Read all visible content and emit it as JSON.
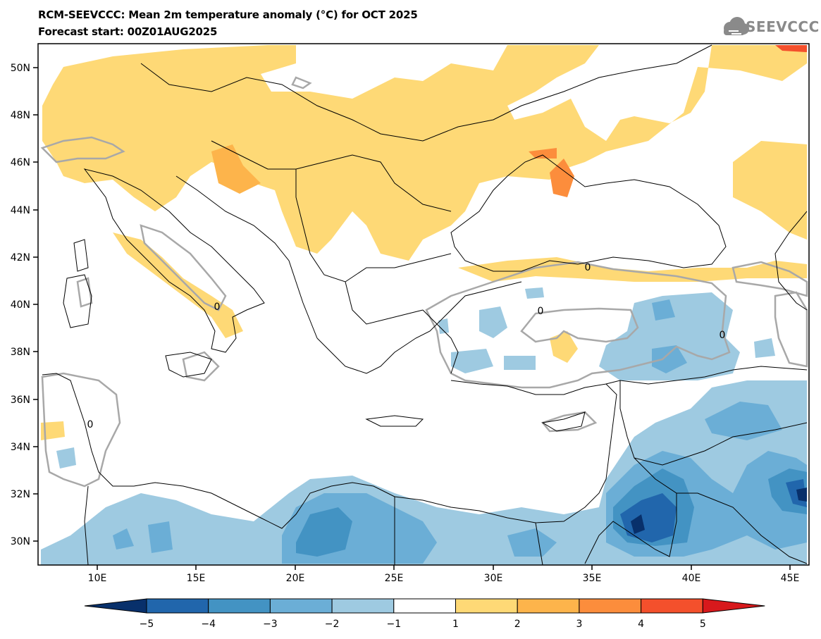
{
  "title": {
    "line1": "RCM-SEEVCCC: Mean 2m temperature anomaly (°C) for OCT 2025",
    "line2": "Forecast start: 00Z01AUG2025"
  },
  "logo": {
    "text": "SEEVCCC",
    "icon": "cloud-logo-icon"
  },
  "map": {
    "projection": "lat-lon",
    "lon_range": [
      7,
      46
    ],
    "lat_range": [
      29,
      51
    ],
    "lon_ticks": [
      "10E",
      "15E",
      "20E",
      "25E",
      "30E",
      "35E",
      "40E",
      "45E"
    ],
    "lat_ticks": [
      "30N",
      "32N",
      "34N",
      "36N",
      "38N",
      "40N",
      "42N",
      "44N",
      "46N",
      "48N",
      "50N"
    ],
    "contour_label": "0"
  },
  "colorbar": {
    "labels": [
      "-5",
      "-4",
      "-3",
      "-2",
      "-1",
      "1",
      "2",
      "3",
      "4",
      "5"
    ],
    "colors": [
      "#08306b",
      "#2166ac",
      "#4393c3",
      "#6baed6",
      "#9ecae1",
      "#ffffff",
      "#fed976",
      "#fdb44b",
      "#fc8d3c",
      "#f4502c",
      "#d7191c"
    ]
  }
}
